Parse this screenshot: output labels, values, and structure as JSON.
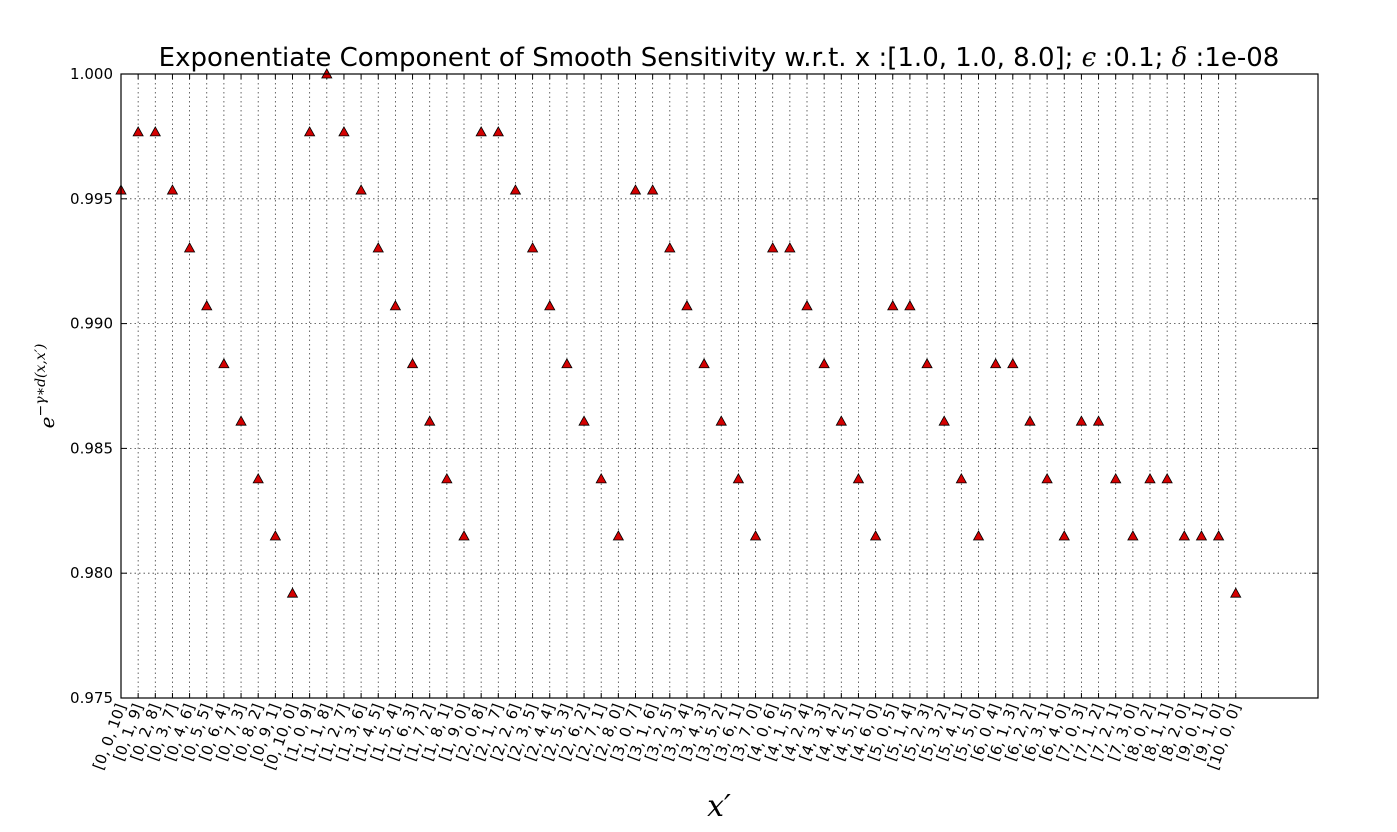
{
  "chart_data": {
    "type": "scatter",
    "title": "Exponentiate Component of Smooth Sensitivity w.r.t. x :[1.0, 1.0, 8.0]; ϵ :0.1; δ :1e-08",
    "title_parts": {
      "prefix": "Exponentiate Component of Smooth Sensitivity w.r.t. x :[1.0, 1.0, 8.0]; ",
      "eps_symbol": "ϵ",
      "eps_value": " :0.1; ",
      "delta_symbol": "δ",
      "delta_value": " :1e-08"
    },
    "xlabel": "x′",
    "ylabel_base": "e",
    "ylabel_exponent": "−γ∗d(x,x′)",
    "ylim": [
      0.975,
      1.0
    ],
    "yticks": [
      "0.975",
      "0.980",
      "0.985",
      "0.990",
      "0.995",
      "1.000"
    ],
    "ytick_values": [
      0.975,
      0.98,
      0.985,
      0.99,
      0.995,
      1.0
    ],
    "grid": true,
    "marker": "triangle",
    "marker_color": "#d40000",
    "categories": [
      "[0, 0, 10]",
      "[0, 1, 9]",
      "[0, 2, 8]",
      "[0, 3, 7]",
      "[0, 4, 6]",
      "[0, 5, 5]",
      "[0, 6, 4]",
      "[0, 7, 3]",
      "[0, 8, 2]",
      "[0, 9, 1]",
      "[0, 10, 0]",
      "[1, 0, 9]",
      "[1, 1, 8]",
      "[1, 2, 7]",
      "[1, 3, 6]",
      "[1, 4, 5]",
      "[1, 5, 4]",
      "[1, 6, 3]",
      "[1, 7, 2]",
      "[1, 8, 1]",
      "[1, 9, 0]",
      "[2, 0, 8]",
      "[2, 1, 7]",
      "[2, 2, 6]",
      "[2, 3, 5]",
      "[2, 4, 4]",
      "[2, 5, 3]",
      "[2, 6, 2]",
      "[2, 7, 1]",
      "[2, 8, 0]",
      "[3, 0, 7]",
      "[3, 1, 6]",
      "[3, 2, 5]",
      "[3, 3, 4]",
      "[3, 4, 3]",
      "[3, 5, 2]",
      "[3, 6, 1]",
      "[3, 7, 0]",
      "[4, 0, 6]",
      "[4, 1, 5]",
      "[4, 2, 4]",
      "[4, 3, 3]",
      "[4, 4, 2]",
      "[4, 5, 1]",
      "[4, 6, 0]",
      "[5, 0, 5]",
      "[5, 1, 4]",
      "[5, 2, 3]",
      "[5, 3, 2]",
      "[5, 4, 1]",
      "[5, 5, 0]",
      "[6, 0, 4]",
      "[6, 1, 3]",
      "[6, 2, 2]",
      "[6, 3, 1]",
      "[6, 4, 0]",
      "[7, 0, 3]",
      "[7, 1, 2]",
      "[7, 2, 1]",
      "[7, 3, 0]",
      "[8, 0, 2]",
      "[8, 1, 1]",
      "[8, 2, 0]",
      "[9, 0, 1]",
      "[9, 1, 0]",
      "[10, 0, 0]"
    ],
    "values": [
      0.99535,
      0.99768,
      0.99768,
      0.99535,
      0.99303,
      0.99071,
      0.98839,
      0.98609,
      0.98378,
      0.98149,
      0.9792,
      0.99768,
      1.0,
      0.99768,
      0.99535,
      0.99303,
      0.99071,
      0.98839,
      0.98609,
      0.98378,
      0.98149,
      0.99768,
      0.99768,
      0.99535,
      0.99303,
      0.99071,
      0.98839,
      0.98609,
      0.98378,
      0.98149,
      0.99535,
      0.99535,
      0.99303,
      0.99071,
      0.98839,
      0.98609,
      0.98378,
      0.98149,
      0.99303,
      0.99303,
      0.99071,
      0.98839,
      0.98609,
      0.98378,
      0.98149,
      0.99071,
      0.99071,
      0.98839,
      0.98609,
      0.98378,
      0.98149,
      0.98839,
      0.98839,
      0.98609,
      0.98378,
      0.98149,
      0.98609,
      0.98609,
      0.98378,
      0.98149,
      0.98378,
      0.98378,
      0.98149,
      0.98149,
      0.98149,
      0.9792
    ]
  }
}
